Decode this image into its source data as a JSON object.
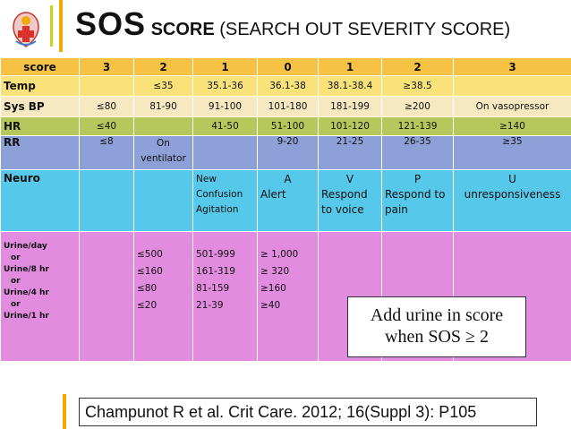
{
  "title": {
    "big": "SOS",
    "bold_small": "SCORE",
    "rest": " (SEARCH OUT SEVERITY SCORE)"
  },
  "header": [
    "score",
    "3",
    "2",
    "1",
    "0",
    "1",
    "2",
    "3"
  ],
  "rows": {
    "temp": {
      "label": "Temp",
      "cells": [
        "",
        "≤35",
        "35.1-36",
        "36.1-38",
        "38.1-38.4",
        "≥38.5",
        ""
      ]
    },
    "sysbp": {
      "label": "Sys BP",
      "cells": [
        "≤80",
        "81-90",
        "91-100",
        "101-180",
        "181-199",
        "≥200",
        "On vasopressor"
      ]
    },
    "hr": {
      "label": "HR",
      "cells": [
        "≤40",
        "",
        "41-50",
        "51-100",
        "101-120",
        "121-139",
        "≥140"
      ]
    },
    "rr": {
      "label": "RR",
      "cells": [
        "≤8",
        "On ventilator",
        "",
        "9-20",
        "21-25",
        "26-35",
        "≥35"
      ]
    },
    "neuro": {
      "label": "Neuro",
      "cells": [
        "",
        "",
        [
          "New",
          "Confusion",
          "Agitation"
        ],
        [
          "A",
          "Alert"
        ],
        [
          "V",
          "Respond",
          "to voice"
        ],
        [
          "P",
          "Respond to",
          "pain"
        ],
        [
          "U",
          "unresponsiveness"
        ]
      ]
    },
    "urine": {
      "label_lines": [
        "Urine/day",
        "or",
        "Urine/8 hr",
        "or",
        "Urine/4 hr",
        "or",
        "Urine/1 hr"
      ],
      "col2": [
        "≤500",
        "≤160",
        "≤80",
        "≤20"
      ],
      "col1": [
        "501-999",
        "161-319",
        "81-159",
        "21-39"
      ],
      "col0": [
        "≥ 1,000",
        "≥ 320",
        "≥160",
        "≥40"
      ]
    }
  },
  "note": {
    "line1": "Add urine in score",
    "line2": "when SOS ≥ 2"
  },
  "citation": "Champunot R et al. Crit Care. 2012; 16(Suppl 3): P105",
  "colors": {
    "accent": "#f2a900",
    "header": "#f6c244",
    "temp": "#f9e27a",
    "sysbp": "#f6e8c0",
    "hr": "#b6c85b",
    "rr": "#8ea0d8",
    "neuro": "#56c8e9",
    "urine": "#e28ce0"
  },
  "icons": {
    "logo": "hospital-emblem-icon"
  }
}
